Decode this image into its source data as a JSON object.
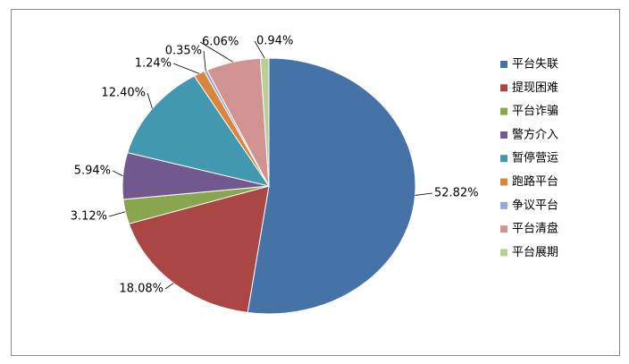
{
  "chart_data": {
    "type": "pie",
    "categories": [
      "平台失联",
      "提现困难",
      "平台诈骗",
      "警方介入",
      "暂停营运",
      "跑路平台",
      "争议平台",
      "平台清盘",
      "平台展期"
    ],
    "values": [
      52.82,
      18.08,
      3.12,
      5.94,
      12.4,
      1.24,
      0.35,
      6.06,
      0.94
    ],
    "value_labels": [
      "52.82%",
      "18.08%",
      "3.12%",
      "5.94%",
      "12.40%",
      "1.24%",
      "0.35%",
      "6.06%",
      "0.94%"
    ],
    "colors": [
      "#4572A7",
      "#AA4643",
      "#89A54E",
      "#71588F",
      "#4198AF",
      "#DB843D",
      "#93A9CF",
      "#D19392",
      "#B9CD96"
    ],
    "legend": "right"
  }
}
